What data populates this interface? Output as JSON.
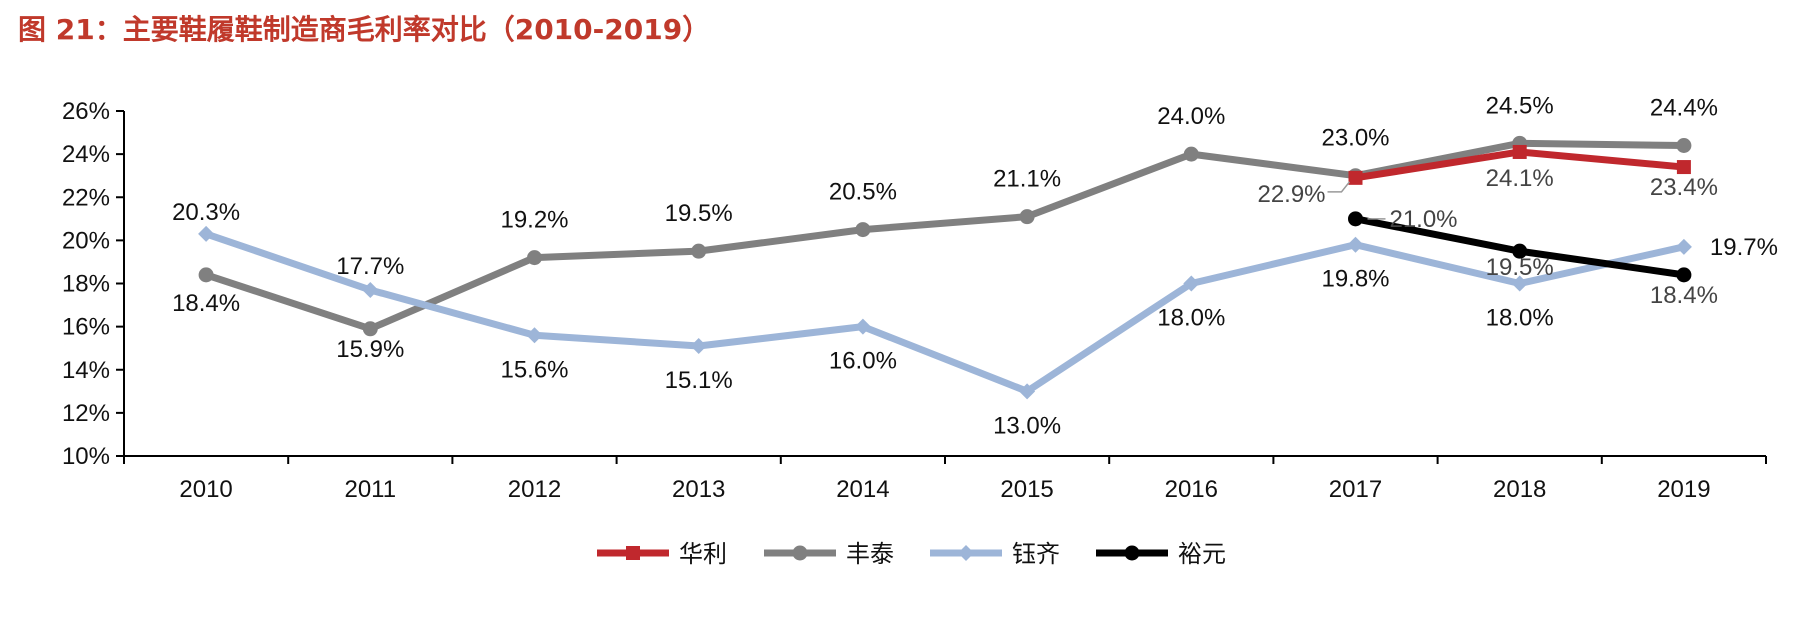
{
  "figure": {
    "title": "图 21：主要鞋履鞋制造商毛利率对比（2010-2019）"
  },
  "chart_data": {
    "type": "line",
    "categories": [
      "2010",
      "2011",
      "2012",
      "2013",
      "2014",
      "2015",
      "2016",
      "2017",
      "2018",
      "2019"
    ],
    "y_ticks": [
      "10%",
      "12%",
      "14%",
      "16%",
      "18%",
      "20%",
      "22%",
      "24%",
      "26%"
    ],
    "ylim": [
      10,
      26
    ],
    "grid": false,
    "legend_position": "bottom",
    "series": [
      {
        "name": "华利",
        "color": "#c0282d",
        "marker": "square",
        "values": [
          null,
          null,
          null,
          null,
          null,
          null,
          null,
          22.9,
          24.1,
          23.4
        ],
        "labels": [
          null,
          null,
          null,
          null,
          null,
          null,
          null,
          "22.9%",
          "24.1%",
          "23.4%"
        ]
      },
      {
        "name": "丰泰",
        "color": "#808080",
        "marker": "circle",
        "values": [
          18.4,
          15.9,
          19.2,
          19.5,
          20.5,
          21.1,
          24.0,
          23.0,
          24.5,
          24.4
        ],
        "labels": [
          "18.4%",
          "15.9%",
          "19.2%",
          "19.5%",
          "20.5%",
          "21.1%",
          "24.0%",
          "23.0%",
          "24.5%",
          "24.4%"
        ]
      },
      {
        "name": "钰齐",
        "color": "#9db5d8",
        "marker": "diamond",
        "values": [
          20.3,
          17.7,
          15.6,
          15.1,
          16.0,
          13.0,
          18.0,
          19.8,
          18.0,
          19.7
        ],
        "labels": [
          "20.3%",
          "17.7%",
          "15.6%",
          "15.1%",
          "16.0%",
          "13.0%",
          "18.0%",
          "19.8%",
          "18.0%",
          "19.7%"
        ]
      },
      {
        "name": "裕元",
        "color": "#000000",
        "marker": "circle",
        "values": [
          null,
          null,
          null,
          null,
          null,
          null,
          null,
          21.0,
          19.5,
          18.4
        ],
        "labels": [
          null,
          null,
          null,
          null,
          null,
          null,
          null,
          "21.0%",
          "19.5%",
          "18.4%"
        ]
      }
    ]
  }
}
